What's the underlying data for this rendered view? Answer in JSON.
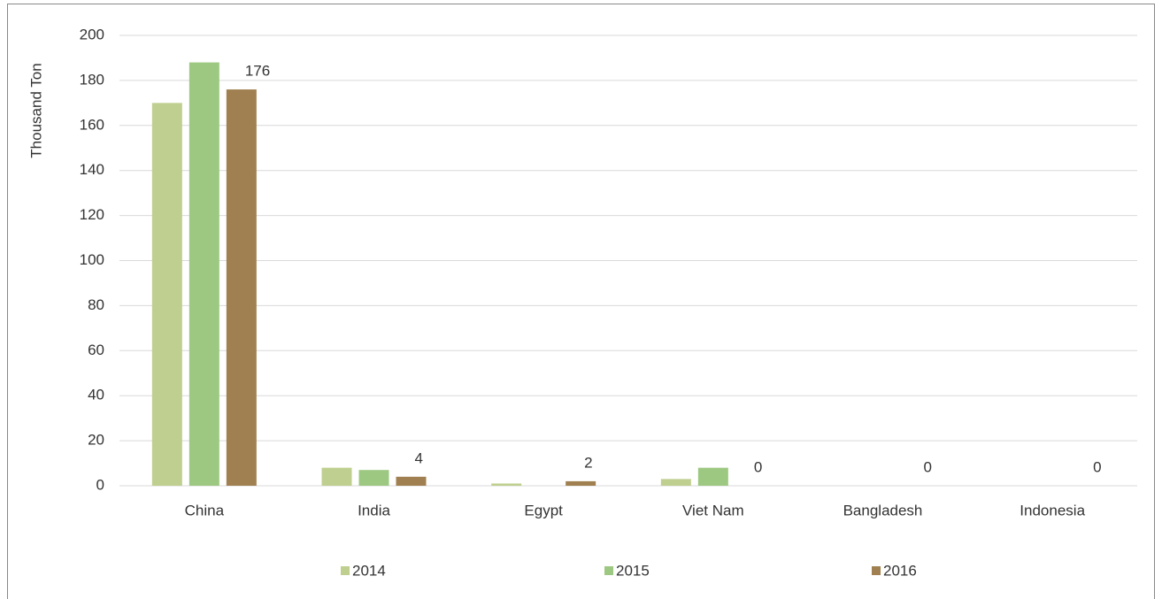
{
  "chart_data": {
    "type": "bar",
    "y_label": "Thousand Ton",
    "categories": [
      "China",
      "India",
      "Egypt",
      "Viet Nam",
      "Bangladesh",
      "Indonesia"
    ],
    "series": [
      {
        "name": "2014",
        "color": "#bfcf8f",
        "values": [
          170,
          8,
          1,
          3,
          0,
          0
        ]
      },
      {
        "name": "2015",
        "color": "#9dc882",
        "values": [
          188,
          7,
          0,
          8,
          0,
          0
        ]
      },
      {
        "name": "2016",
        "color": "#a08050",
        "values": [
          176,
          4,
          2,
          0,
          0,
          0
        ],
        "data_labels": true
      }
    ],
    "ylim": [
      0,
      200
    ],
    "yticks": [
      0,
      20,
      40,
      60,
      80,
      100,
      120,
      140,
      160,
      180,
      200
    ],
    "grid": true,
    "legend": "bottom"
  }
}
